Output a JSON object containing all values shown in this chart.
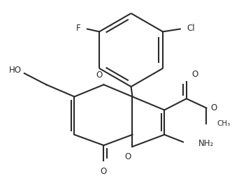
{
  "background_color": "#ffffff",
  "line_color": "#2a2a2a",
  "line_width": 1.5,
  "figsize": [
    3.32,
    2.52
  ],
  "dpi": 100,
  "xlim": [
    0,
    332
  ],
  "ylim": [
    0,
    252
  ]
}
